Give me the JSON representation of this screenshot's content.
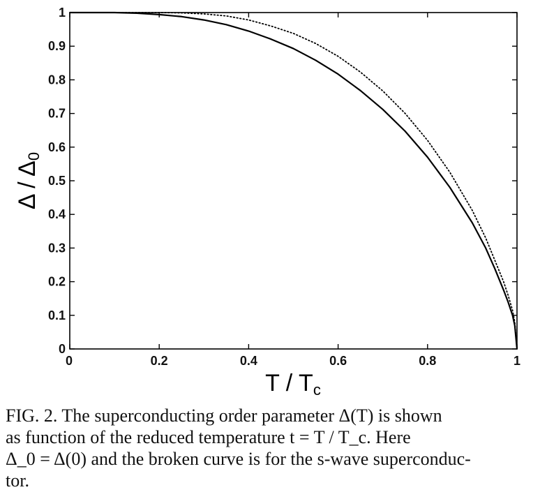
{
  "chart_data": {
    "type": "line",
    "title": "",
    "xlabel": "T / T_c",
    "ylabel": "Δ / Δ_0",
    "xlim": [
      0,
      1
    ],
    "ylim": [
      0,
      1
    ],
    "x_ticks": [
      "0",
      "0.2",
      "0.4",
      "0.6",
      "0.8",
      "1"
    ],
    "y_ticks": [
      "0",
      "0.1",
      "0.2",
      "0.3",
      "0.4",
      "0.5",
      "0.6",
      "0.7",
      "0.8",
      "0.9",
      "1"
    ],
    "grid": false,
    "legend": "none",
    "series": [
      {
        "style": "solid",
        "color": "#000000",
        "x": [
          0,
          0.05,
          0.1,
          0.15,
          0.2,
          0.25,
          0.3,
          0.35,
          0.4,
          0.45,
          0.5,
          0.55,
          0.6,
          0.65,
          0.7,
          0.75,
          0.8,
          0.85,
          0.9,
          0.93,
          0.95,
          0.97,
          0.98,
          0.99,
          0.995,
          1.0
        ],
        "y": [
          1.0,
          1.0,
          1.0,
          0.998,
          0.994,
          0.988,
          0.978,
          0.964,
          0.945,
          0.921,
          0.893,
          0.858,
          0.817,
          0.768,
          0.712,
          0.647,
          0.57,
          0.48,
          0.375,
          0.3,
          0.24,
          0.175,
          0.14,
          0.1,
          0.07,
          0.0
        ]
      },
      {
        "style": "dotted",
        "color": "#000000",
        "x": [
          0,
          0.05,
          0.1,
          0.15,
          0.2,
          0.25,
          0.3,
          0.35,
          0.4,
          0.45,
          0.5,
          0.55,
          0.6,
          0.65,
          0.7,
          0.75,
          0.8,
          0.85,
          0.9,
          0.93,
          0.95,
          0.97,
          0.98,
          0.99,
          0.995,
          1.0
        ],
        "y": [
          1.0,
          1.0,
          1.0,
          1.0,
          1.0,
          0.999,
          0.996,
          0.99,
          0.978,
          0.96,
          0.938,
          0.908,
          0.87,
          0.823,
          0.767,
          0.7,
          0.62,
          0.525,
          0.412,
          0.33,
          0.265,
          0.2,
          0.16,
          0.115,
          0.08,
          0.0
        ]
      }
    ]
  },
  "caption": {
    "line1": "FIG. 2.  The superconducting order parameter Δ(T) is shown",
    "line2": "as  function  of  the  reduced  temperature  t = T / T_c.   Here",
    "line3": "Δ_0 = Δ(0) and the broken curve is for the s-wave superconduc-",
    "line4": "tor."
  }
}
